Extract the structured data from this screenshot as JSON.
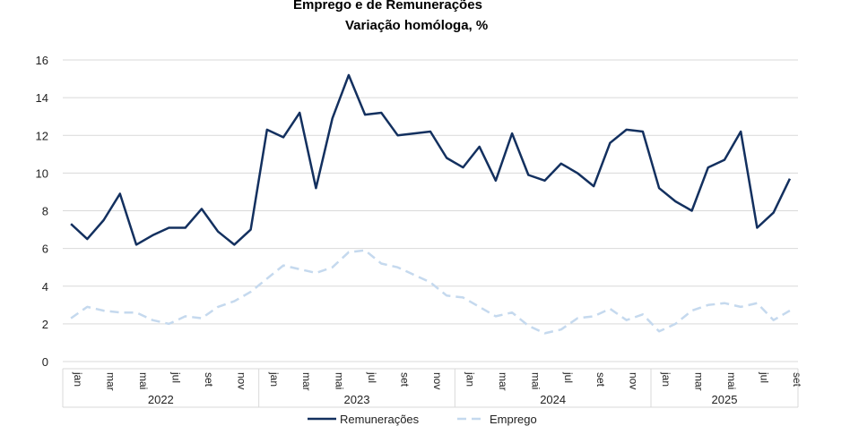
{
  "chart_data": {
    "type": "line",
    "title": "Emprego e de Remunerações",
    "subtitle": "Variação homóloga, %",
    "ylim": [
      0,
      16
    ],
    "yticks": [
      0,
      2,
      4,
      6,
      8,
      10,
      12,
      14,
      16
    ],
    "grid": true,
    "legend": "bottom",
    "years": [
      "2022",
      "2023",
      "2024",
      "2025"
    ],
    "months_per_year": [
      12,
      12,
      12,
      9
    ],
    "month_labels": [
      "jan",
      "",
      "mar",
      "",
      "mai",
      "",
      "jul",
      "",
      "set",
      "",
      "nov",
      ""
    ],
    "series": [
      {
        "name": "Remunerações",
        "color": "#13305f",
        "style": "solid",
        "values": [
          7.3,
          6.5,
          7.5,
          8.9,
          6.2,
          6.7,
          7.1,
          7.1,
          8.1,
          6.9,
          6.2,
          7.0,
          12.3,
          11.9,
          13.2,
          9.2,
          12.9,
          15.2,
          13.1,
          13.2,
          12.0,
          12.1,
          12.2,
          10.8,
          10.3,
          11.4,
          9.6,
          12.1,
          9.9,
          9.6,
          10.5,
          10.0,
          9.3,
          11.6,
          12.3,
          12.2,
          9.2,
          8.5,
          8.0,
          10.3,
          10.7,
          12.2,
          7.1,
          7.9,
          9.7
        ]
      },
      {
        "name": "Emprego",
        "color": "#c5d9ee",
        "style": "dashed",
        "values": [
          2.3,
          2.9,
          2.7,
          2.6,
          2.6,
          2.2,
          2.0,
          2.4,
          2.3,
          2.9,
          3.2,
          3.7,
          4.4,
          5.1,
          4.9,
          4.7,
          5.0,
          5.8,
          5.9,
          5.2,
          5.0,
          4.6,
          4.2,
          3.5,
          3.4,
          2.9,
          2.4,
          2.6,
          1.9,
          1.5,
          1.7,
          2.3,
          2.4,
          2.8,
          2.2,
          2.5,
          1.6,
          2.0,
          2.7,
          3.0,
          3.1,
          2.9,
          3.1,
          2.2,
          2.7
        ]
      }
    ]
  }
}
